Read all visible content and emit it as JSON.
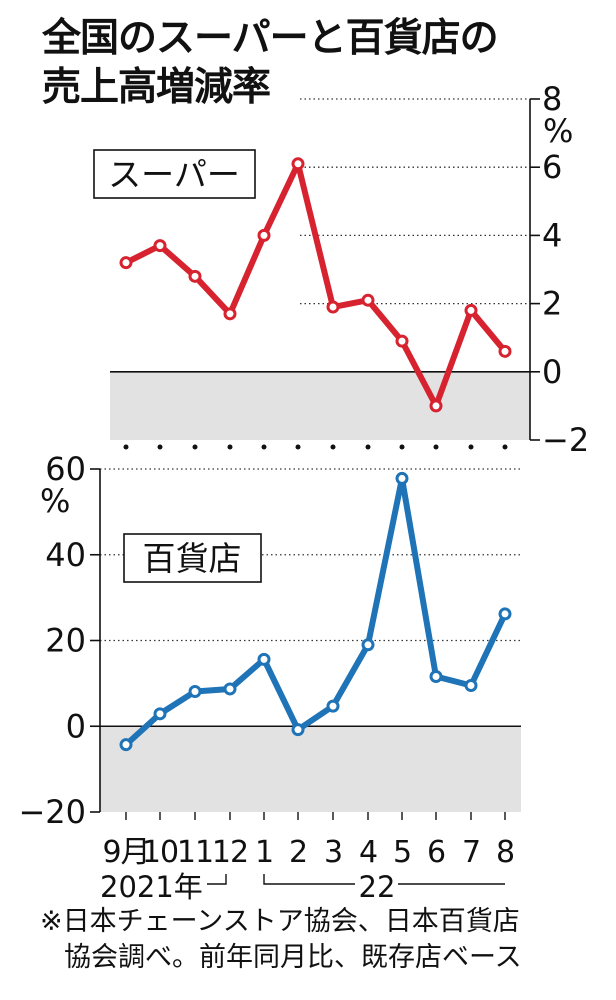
{
  "title": {
    "line1": "全国のスーパーと百貨店の",
    "line2": "売上高増減率"
  },
  "note": {
    "line1": "※日本チェーンストア協会、日本百貨店",
    "line2": "協会調べ。前年同月比、既存店ベース"
  },
  "x_axis": {
    "year_2021": "2021年",
    "year_2022": "22"
  },
  "chart_data": [
    {
      "type": "line",
      "panel_label": "スーパー",
      "unit": "%",
      "categories": [
        "9月",
        "10",
        "11",
        "12",
        "1",
        "2",
        "3",
        "4",
        "5",
        "6",
        "7",
        "8"
      ],
      "series": [
        {
          "name": "スーパー",
          "color": "#d7232f",
          "values": [
            3.2,
            3.7,
            2.8,
            1.7,
            4.0,
            6.1,
            1.9,
            2.1,
            0.9,
            -1.0,
            1.8,
            0.6
          ]
        }
      ],
      "ylim": [
        -2,
        8
      ],
      "yticks": [
        "8",
        "6",
        "4",
        "2",
        "0",
        "−2"
      ],
      "y_axis_side": "right",
      "negative_region_shaded": true,
      "grid": "dotted horizontal"
    },
    {
      "type": "line",
      "panel_label": "百貨店",
      "unit": "%",
      "categories": [
        "9月",
        "10",
        "11",
        "12",
        "1",
        "2",
        "3",
        "4",
        "5",
        "6",
        "7",
        "8"
      ],
      "series": [
        {
          "name": "百貨店",
          "color": "#1f73b7",
          "values": [
            -4.3,
            2.9,
            8.1,
            8.7,
            15.6,
            -0.8,
            4.7,
            19.0,
            57.8,
            11.6,
            9.5,
            26.2
          ]
        }
      ],
      "ylim": [
        -20,
        60
      ],
      "yticks": [
        "60",
        "40",
        "20",
        "0",
        "−20"
      ],
      "y_axis_side": "left",
      "negative_region_shaded": true,
      "grid": "dotted horizontal"
    }
  ]
}
